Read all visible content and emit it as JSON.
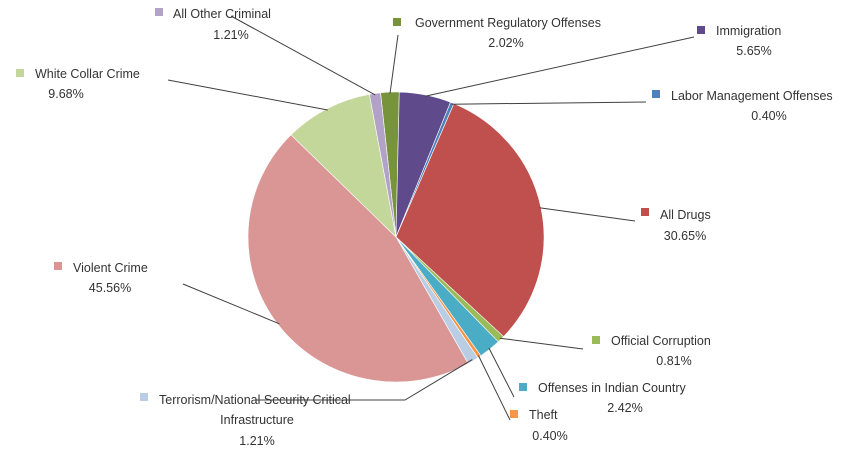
{
  "chart_data": {
    "type": "pie",
    "title": "",
    "legend": "none (labels beside slices)",
    "slices": [
      {
        "label": "Government Regulatory Offenses",
        "display_label": [
          "Government Regulatory Offenses"
        ],
        "value": 2.02,
        "pct_text": "2.02%",
        "color": "#77933c"
      },
      {
        "label": "Immigration",
        "display_label": [
          "Immigration"
        ],
        "value": 5.65,
        "pct_text": "5.65%",
        "color": "#5f4b8b"
      },
      {
        "label": "Labor Management Offenses",
        "display_label": [
          "Labor Management Offenses"
        ],
        "value": 0.4,
        "pct_text": "0.40%",
        "color": "#4f81bd"
      },
      {
        "label": "All Drugs",
        "display_label": [
          "All Drugs"
        ],
        "value": 30.65,
        "pct_text": "30.65%",
        "color": "#c0504d"
      },
      {
        "label": "Official Corruption",
        "display_label": [
          "Official Corruption"
        ],
        "value": 0.81,
        "pct_text": "0.81%",
        "color": "#9bbb59"
      },
      {
        "label": "Offenses in Indian Country",
        "display_label": [
          "Offenses in Indian Country"
        ],
        "value": 2.42,
        "pct_text": "2.42%",
        "color": "#4bacc6"
      },
      {
        "label": "Theft",
        "display_label": [
          "Theft"
        ],
        "value": 0.4,
        "pct_text": "0.40%",
        "color": "#f79646"
      },
      {
        "label": "Terrorism/National Security Critical Infrastructure",
        "display_label": [
          "Terrorism/National Security Critical",
          "Infrastructure"
        ],
        "value": 1.21,
        "pct_text": "1.21%",
        "color": "#b9cde5"
      },
      {
        "label": "Violent Crime",
        "display_label": [
          "Violent Crime"
        ],
        "value": 45.56,
        "pct_text": "45.56%",
        "color": "#d99694"
      },
      {
        "label": "White Collar Crime",
        "display_label": [
          "White Collar Crime"
        ],
        "value": 9.68,
        "pct_text": "9.68%",
        "color": "#c4d79b"
      },
      {
        "label": "All Other Criminal",
        "display_label": [
          "All Other Criminal"
        ],
        "value": 1.21,
        "pct_text": "1.21%",
        "color": "#b3a2c7"
      }
    ]
  }
}
